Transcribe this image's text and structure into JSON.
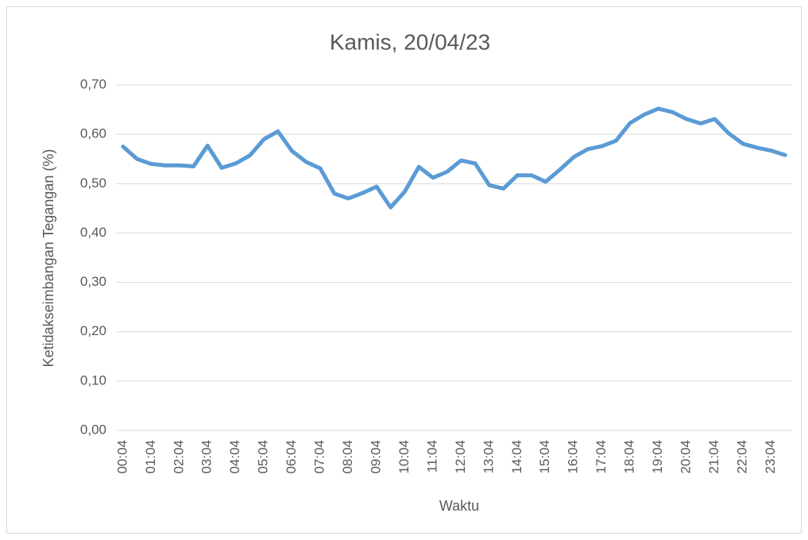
{
  "chart_data": {
    "type": "line",
    "title": "Kamis, 20/04/23",
    "x_label": "Waktu",
    "y_label": "Ketidakseimbangan Tegangan (%)",
    "categories": [
      "00:04",
      null,
      "01:04",
      null,
      "02:04",
      null,
      "03:04",
      null,
      "04:04",
      null,
      "05:04",
      null,
      "06:04",
      null,
      "07:04",
      null,
      "08:04",
      null,
      "09:04",
      null,
      "10:04",
      null,
      "11:04",
      null,
      "12:04",
      null,
      "13:04",
      null,
      "14:04",
      null,
      "15:04",
      null,
      "16:04",
      null,
      "17:04",
      null,
      "18:04",
      null,
      "19:04",
      null,
      "20:04",
      null,
      "21:04",
      null,
      "22:04",
      null,
      "23:04",
      null
    ],
    "series": [
      {
        "color": "#5b9bd5",
        "values": [
          0.575,
          0.55,
          0.54,
          0.537,
          0.537,
          0.535,
          0.577,
          0.532,
          0.541,
          0.557,
          0.59,
          0.606,
          0.566,
          0.544,
          0.531,
          0.48,
          0.47,
          0.481,
          0.494,
          0.452,
          0.484,
          0.534,
          0.512,
          0.524,
          0.547,
          0.541,
          0.497,
          0.49,
          0.517,
          0.517,
          0.504,
          0.528,
          0.554,
          0.57,
          0.576,
          0.587,
          0.623,
          0.64,
          0.652,
          0.645,
          0.631,
          0.622,
          0.631,
          0.602,
          0.581,
          0.573,
          0.567,
          0.558
        ]
      }
    ],
    "ylim": [
      0,
      0.7
    ],
    "yticks": [
      {
        "value": 0,
        "label": "0,00"
      },
      {
        "value": 0.1,
        "label": "0,10"
      },
      {
        "value": 0.2,
        "label": "0,20"
      },
      {
        "value": 0.3,
        "label": "0,30"
      },
      {
        "value": 0.4,
        "label": "0,40"
      },
      {
        "value": 0.5,
        "label": "0,50"
      },
      {
        "value": 0.6,
        "label": "0,60"
      },
      {
        "value": 0.7,
        "label": "0,70"
      }
    ],
    "grid": true
  }
}
